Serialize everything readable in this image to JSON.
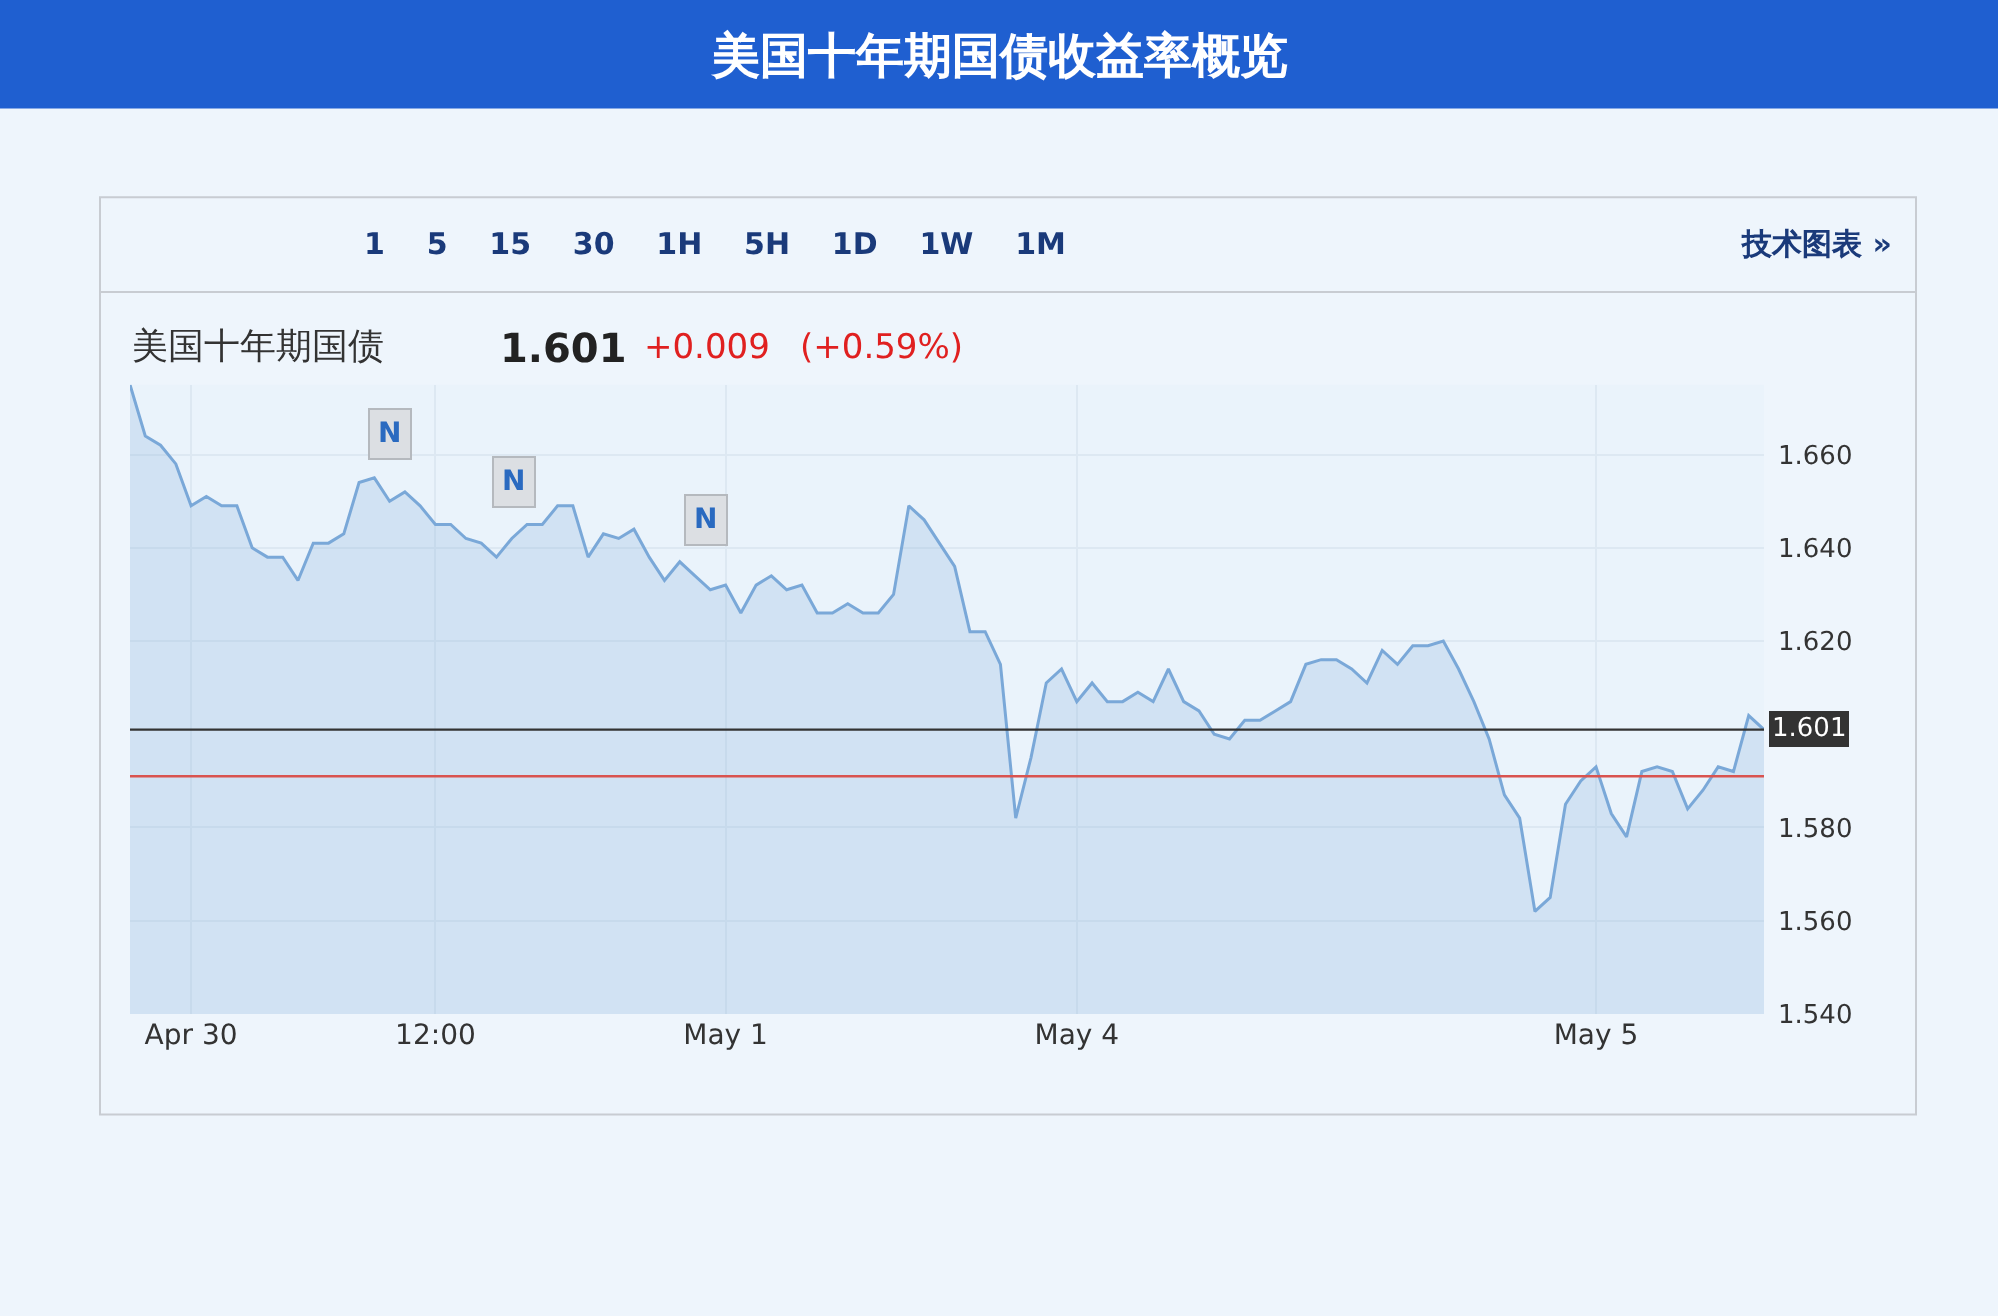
{
  "chart_data": {
    "type": "area",
    "title": "美国十年期国债收益率概览",
    "subtitle": "美国十年期国债",
    "categories": [
      null,
      null,
      null,
      null,
      "Apr 30",
      null,
      null,
      null,
      null,
      null,
      null,
      null,
      null,
      null,
      null,
      null,
      null,
      null,
      null,
      null,
      "12:00",
      null,
      null,
      null,
      null,
      null,
      null,
      null,
      null,
      null,
      null,
      null,
      null,
      null,
      null,
      null,
      null,
      null,
      null,
      "May 1",
      null,
      null,
      null,
      null,
      null,
      null,
      null,
      null,
      null,
      null,
      null,
      null,
      null,
      null,
      null,
      null,
      null,
      null,
      null,
      null,
      null,
      null,
      "May 4",
      null,
      null,
      null,
      null,
      null,
      null,
      null,
      null,
      null,
      null,
      null,
      null,
      null,
      null,
      null,
      null,
      null,
      null,
      null,
      null,
      null,
      null,
      null,
      null,
      null,
      null,
      null,
      null,
      null,
      null,
      null,
      null,
      null,
      "May 5",
      null,
      null,
      null,
      null,
      null,
      null,
      null,
      null,
      null,
      null,
      null
    ],
    "series": [
      {
        "color": "#7aa8d8",
        "values": [
          1.675,
          1.664,
          1.662,
          1.658,
          1.649,
          1.651,
          1.649,
          1.649,
          1.64,
          1.638,
          1.638,
          1.633,
          1.641,
          1.641,
          1.643,
          1.654,
          1.655,
          1.65,
          1.652,
          1.649,
          1.645,
          1.645,
          1.642,
          1.641,
          1.638,
          1.642,
          1.645,
          1.645,
          1.649,
          1.649,
          1.638,
          1.643,
          1.642,
          1.644,
          1.638,
          1.633,
          1.637,
          1.634,
          1.631,
          1.632,
          1.626,
          1.632,
          1.634,
          1.631,
          1.632,
          1.626,
          1.626,
          1.628,
          1.626,
          1.626,
          1.63,
          1.649,
          1.646,
          1.641,
          1.636,
          1.622,
          1.622,
          1.615,
          1.582,
          1.595,
          1.611,
          1.614,
          1.607,
          1.611,
          1.607,
          1.607,
          1.609,
          1.607,
          1.614,
          1.607,
          1.605,
          1.6,
          1.599,
          1.603,
          1.603,
          1.605,
          1.607,
          1.615,
          1.616,
          1.616,
          1.614,
          1.611,
          1.618,
          1.615,
          1.619,
          1.619,
          1.62,
          1.614,
          1.607,
          1.599,
          1.587,
          1.582,
          1.562,
          1.565,
          1.585,
          1.59,
          1.593,
          1.583,
          1.578,
          1.592,
          1.593,
          1.592,
          1.584,
          1.588,
          1.593,
          1.592,
          1.604,
          1.601
        ]
      }
    ],
    "ylim": [
      1.54,
      1.675
    ],
    "yticks": [
      {
        "value": 1.54,
        "label": "1.540"
      },
      {
        "value": 1.56,
        "label": "1.560"
      },
      {
        "value": 1.58,
        "label": "1.580"
      },
      {
        "value": 1.62,
        "label": "1.620"
      },
      {
        "value": 1.64,
        "label": "1.640"
      },
      {
        "value": 1.66,
        "label": "1.660"
      }
    ],
    "grid": true,
    "ref_lines": [
      {
        "axis": "y",
        "value": 1.601,
        "label": "1.601",
        "color": "#333333"
      },
      {
        "axis": "y",
        "value": 1.591,
        "color": "#d9534f"
      }
    ],
    "annotations": [
      "N",
      "N",
      "N",
      "1.601",
      "+0.009",
      "(+0.59%)",
      "1 5 15 30 1H 5H 1D 1W 1M",
      "技术图表 »"
    ]
  }
}
